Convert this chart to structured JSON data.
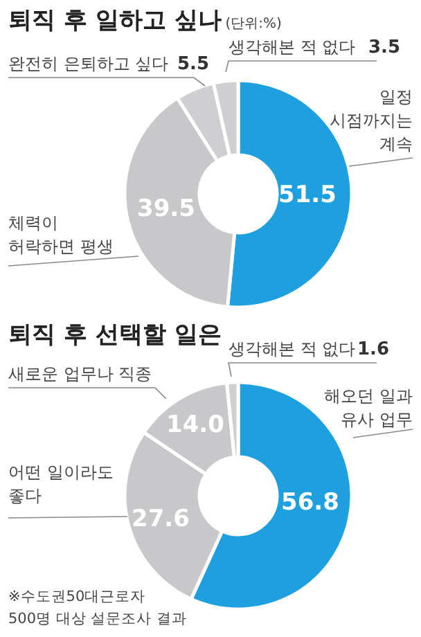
{
  "chart_data": [
    {
      "type": "donut",
      "title": "퇴직 후 일하고 싶나",
      "subtitle": "(단위:%)",
      "categories": [
        "일정\n시점까지는\n계속",
        "체력이\n허락하면 평생",
        "완전히 은퇴하고 싶다",
        "생각해본 적 없다"
      ],
      "values": [
        51.5,
        39.5,
        5.5,
        3.5
      ],
      "value_labels": [
        "51.5",
        "39.5",
        "5.5",
        "3.5"
      ],
      "colors": [
        "#1ea0e0",
        "#c8c8cb",
        "#cfcfd2",
        "#cfcfd2"
      ]
    },
    {
      "type": "donut",
      "title": "퇴직 후 선택할 일은",
      "categories": [
        "해오던 일과\n유사 업무",
        "어떤 일이라도\n좋다",
        "새로운 업무나 직종",
        "생각해본 적 없다"
      ],
      "values": [
        56.8,
        27.6,
        14.0,
        1.6
      ],
      "value_labels": [
        "56.8",
        "27.6",
        "14.0",
        "1.6"
      ],
      "colors": [
        "#1ea0e0",
        "#c8c8cb",
        "#c8c8cb",
        "#cfcfd2"
      ],
      "annotations": [
        "※수도권50대근로자\n500명 대상 설문조사 결과"
      ]
    }
  ]
}
